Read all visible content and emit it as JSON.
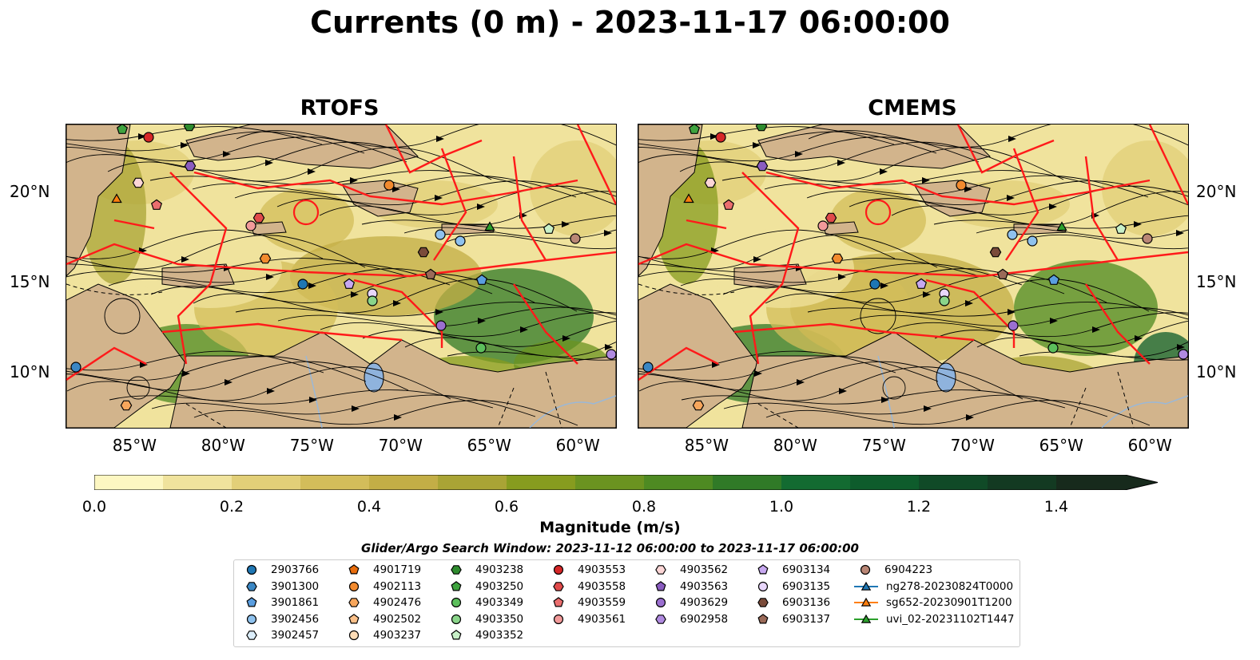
{
  "title": "Currents (0 m) - 2023-11-17 06:00:00",
  "panels": [
    {
      "title": "RTOFS"
    },
    {
      "title": "CMEMS"
    }
  ],
  "axes": {
    "lon_ticks": [
      "85°W",
      "80°W",
      "75°W",
      "70°W",
      "65°W",
      "60°W"
    ],
    "lat_ticks": [
      "20°N",
      "15°N",
      "10°N"
    ]
  },
  "colorbar": {
    "label": "Magnitude (m/s)",
    "ticks": [
      "0.0",
      "0.2",
      "0.4",
      "0.6",
      "0.8",
      "1.0",
      "1.2",
      "1.4"
    ],
    "range": [
      0.0,
      1.5
    ],
    "colors": [
      "#fdf7c2",
      "#f0e39d",
      "#e2cf78",
      "#d3bd5a",
      "#c3ae46",
      "#a9a435",
      "#879c1f",
      "#6b9320",
      "#4e8a22",
      "#307a27",
      "#136b31",
      "#0e5c2c",
      "#104a27",
      "#133a22",
      "#172a1c"
    ]
  },
  "search_window": "Glider/Argo Search Window: 2023-11-12 06:00:00 to 2023-11-17 06:00:00",
  "legend": {
    "columns": [
      [
        {
          "label": "2903766",
          "marker": "circle",
          "color": "#1f77b4"
        },
        {
          "label": "3901300",
          "marker": "hexagon",
          "color": "#3b87c4"
        },
        {
          "label": "3901861",
          "marker": "pentagon",
          "color": "#5a9ee0"
        },
        {
          "label": "3902456",
          "marker": "circle",
          "color": "#8fc2ee"
        },
        {
          "label": "3902457",
          "marker": "hexagon",
          "color": "#dceefb"
        }
      ],
      [
        {
          "label": "4901719",
          "marker": "pentagon",
          "color": "#e86c0c"
        },
        {
          "label": "4902113",
          "marker": "circle",
          "color": "#f28a2e"
        },
        {
          "label": "4902476",
          "marker": "hexagon",
          "color": "#f7a65c"
        },
        {
          "label": "4902502",
          "marker": "pentagon",
          "color": "#fbc089"
        },
        {
          "label": "4903237",
          "marker": "circle",
          "color": "#fddcb6"
        }
      ],
      [
        {
          "label": "4903238",
          "marker": "hexagon",
          "color": "#2e8b2e"
        },
        {
          "label": "4903250",
          "marker": "pentagon",
          "color": "#3fa33f"
        },
        {
          "label": "4903349",
          "marker": "circle",
          "color": "#5cbf5c"
        },
        {
          "label": "4903350",
          "marker": "circle",
          "color": "#8ad58a"
        },
        {
          "label": "4903352",
          "marker": "pentagon",
          "color": "#c8f0c8"
        }
      ],
      [
        {
          "label": "4903553",
          "marker": "circle",
          "color": "#d62728"
        },
        {
          "label": "4903558",
          "marker": "hexagon",
          "color": "#e04a4a"
        },
        {
          "label": "4903559",
          "marker": "pentagon",
          "color": "#ea6e6e"
        },
        {
          "label": "4903561",
          "marker": "circle",
          "color": "#f29a9a"
        }
      ],
      [
        {
          "label": "4903562",
          "marker": "hexagon",
          "color": "#fcd6d6"
        },
        {
          "label": "4903563",
          "marker": "pentagon",
          "color": "#8a5cc0"
        },
        {
          "label": "4903629",
          "marker": "circle",
          "color": "#9b6fd0"
        },
        {
          "label": "6902958",
          "marker": "hexagon",
          "color": "#b08ae0"
        }
      ],
      [
        {
          "label": "6903134",
          "marker": "pentagon",
          "color": "#c7a8f0"
        },
        {
          "label": "6903135",
          "marker": "circle",
          "color": "#e8d6fb"
        },
        {
          "label": "6903136",
          "marker": "hexagon",
          "color": "#7a4b3a"
        },
        {
          "label": "6903137",
          "marker": "pentagon",
          "color": "#9a6a58"
        }
      ],
      [
        {
          "label": "6904223",
          "marker": "circle",
          "color": "#b98675"
        },
        {
          "label": "ng278-20230824T0000",
          "marker": "triangle",
          "color": "#1f77b4"
        },
        {
          "label": "sg652-20230901T1200",
          "marker": "triangle",
          "color": "#ff7f0e"
        },
        {
          "label": "uvi_02-20231102T1447",
          "marker": "triangle",
          "color": "#2ca02c"
        }
      ]
    ]
  }
}
